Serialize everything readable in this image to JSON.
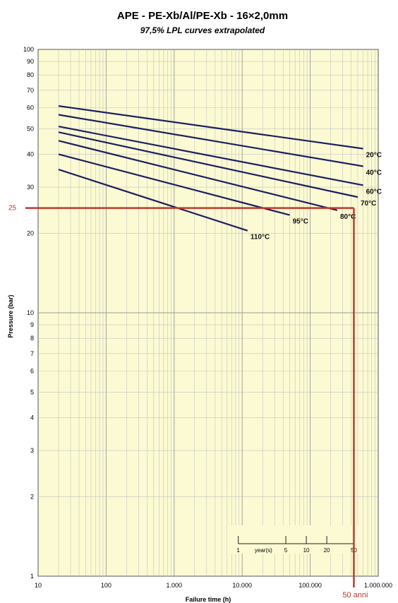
{
  "chart_data": {
    "type": "line",
    "title": "APE - PE-Xb/Al/PE-Xb - 16×2,0mm",
    "subtitle": "97,5% LPL curves extrapolated",
    "xlabel": "Failure time (h)",
    "ylabel": "Pressure (bar)",
    "x_scale": "log",
    "y_scale": "log",
    "xlim": [
      10,
      1000000
    ],
    "ylim": [
      1,
      100
    ],
    "grid": true,
    "background_color": "#fbfad2",
    "grid_color": "#c4c4c4",
    "line_color": "#1c2060",
    "x_tick_labels": [
      {
        "value": 10,
        "label": "10"
      },
      {
        "value": 100,
        "label": "100"
      },
      {
        "value": 1000,
        "label": "1.000"
      },
      {
        "value": 10000,
        "label": "10.000"
      },
      {
        "value": 100000,
        "label": "100.000"
      },
      {
        "value": 1000000,
        "label": "1.000.000"
      }
    ],
    "y_tick_labels": [
      {
        "value": 1,
        "label": "1"
      },
      {
        "value": 2,
        "label": "2"
      },
      {
        "value": 3,
        "label": "3"
      },
      {
        "value": 4,
        "label": "4"
      },
      {
        "value": 5,
        "label": "5"
      },
      {
        "value": 6,
        "label": "6"
      },
      {
        "value": 7,
        "label": "7"
      },
      {
        "value": 8,
        "label": "8"
      },
      {
        "value": 9,
        "label": "9"
      },
      {
        "value": 10,
        "label": "10"
      },
      {
        "value": 20,
        "label": "20"
      },
      {
        "value": 30,
        "label": "30"
      },
      {
        "value": 40,
        "label": "40"
      },
      {
        "value": 50,
        "label": "50"
      },
      {
        "value": 60,
        "label": "60"
      },
      {
        "value": 70,
        "label": "70"
      },
      {
        "value": 80,
        "label": "80"
      },
      {
        "value": 90,
        "label": "90"
      },
      {
        "value": 100,
        "label": "100"
      }
    ],
    "series": [
      {
        "name": "20°C",
        "x": [
          20,
          600000
        ],
        "y": [
          61,
          42
        ]
      },
      {
        "name": "40°C",
        "x": [
          20,
          600000
        ],
        "y": [
          56.5,
          36
        ]
      },
      {
        "name": "60°C",
        "x": [
          20,
          600000
        ],
        "y": [
          51,
          30.5
        ]
      },
      {
        "name": "70°C",
        "x": [
          20,
          500000
        ],
        "y": [
          48.5,
          27.5
        ]
      },
      {
        "name": "80°C",
        "x": [
          20,
          250000
        ],
        "y": [
          45,
          24.5
        ]
      },
      {
        "name": "95°C",
        "x": [
          20,
          50000
        ],
        "y": [
          40,
          23.5
        ]
      },
      {
        "name": "110°C",
        "x": [
          20,
          12000
        ],
        "y": [
          35,
          20.5
        ]
      }
    ],
    "year_scale": {
      "label": "year(s)",
      "ticks": [
        {
          "hours": 8760,
          "label": "1"
        },
        {
          "hours": 43800,
          "label": "5"
        },
        {
          "hours": 87600,
          "label": "10"
        },
        {
          "hours": 175200,
          "label": "20"
        },
        {
          "hours": 438000,
          "label": "50"
        }
      ]
    },
    "annotations": {
      "pressure_line": {
        "value": 25,
        "label": "25",
        "color": "#c0392b"
      },
      "time_line": {
        "value": 438000,
        "label": "50 anni",
        "color": "#c0392b"
      }
    }
  }
}
